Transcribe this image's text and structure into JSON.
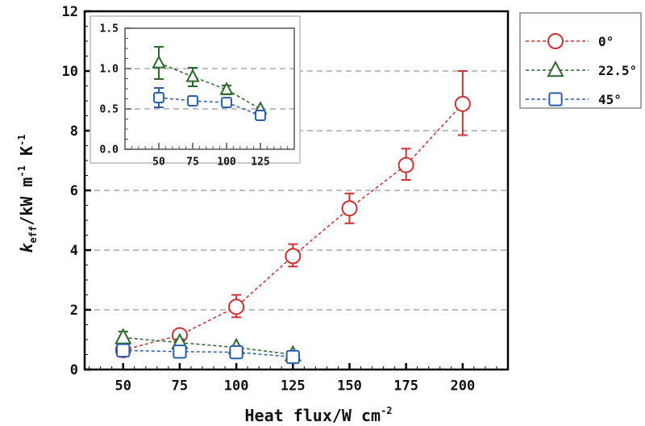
{
  "chart_data": {
    "type": "line",
    "xlabel": "Heat flux/W cm",
    "xlabel_sup": "-2",
    "ylabel": "k",
    "ylabel_sub": "eff",
    "ylabel_rest": "/kW m",
    "ylabel_sup1": "-1",
    "ylabel_k": " K",
    "ylabel_sup2": "-1",
    "xlim": [
      33,
      220
    ],
    "ylim": [
      0,
      12
    ],
    "xticks": [
      50,
      75,
      100,
      125,
      150,
      175,
      200
    ],
    "yticks": [
      0,
      2,
      4,
      6,
      8,
      10,
      12
    ],
    "grid": "horizontal dashed",
    "legend": "top-right outside",
    "series": [
      {
        "name": "0°",
        "color": "#d03030",
        "marker": "circle",
        "x": [
          50,
          75,
          100,
          125,
          150,
          175,
          200
        ],
        "y": [
          0.65,
          1.15,
          2.1,
          3.8,
          5.4,
          6.85,
          8.9
        ],
        "err_low": [
          null,
          null,
          1.75,
          3.45,
          4.9,
          6.35,
          7.85
        ],
        "err_high": [
          null,
          null,
          2.5,
          4.2,
          5.9,
          7.4,
          10.0
        ]
      },
      {
        "name": "22.5°",
        "color": "#2a6a2a",
        "marker": "triangle",
        "x": [
          50,
          75,
          100,
          125
        ],
        "y": [
          1.07,
          0.9,
          0.74,
          0.5
        ],
        "err_low": [
          0.87,
          0.78,
          0.68,
          null
        ],
        "err_high": [
          1.27,
          1.01,
          0.79,
          null
        ]
      },
      {
        "name": "45°",
        "color": "#2a5fb0",
        "marker": "square",
        "x": [
          50,
          75,
          100,
          125
        ],
        "y": [
          0.64,
          0.6,
          0.58,
          0.42
        ],
        "err_low": [
          0.52,
          null,
          null,
          null
        ],
        "err_high": [
          0.76,
          null,
          null,
          null
        ]
      }
    ],
    "inset": {
      "xlim": [
        25,
        150
      ],
      "ylim": [
        0,
        1.5
      ],
      "xticks": [
        50,
        75,
        100,
        125
      ],
      "yticks": [
        "0.0",
        "0.5",
        "1.0",
        "1.5"
      ],
      "series_shown": [
        "22.5°",
        "45°"
      ]
    }
  }
}
